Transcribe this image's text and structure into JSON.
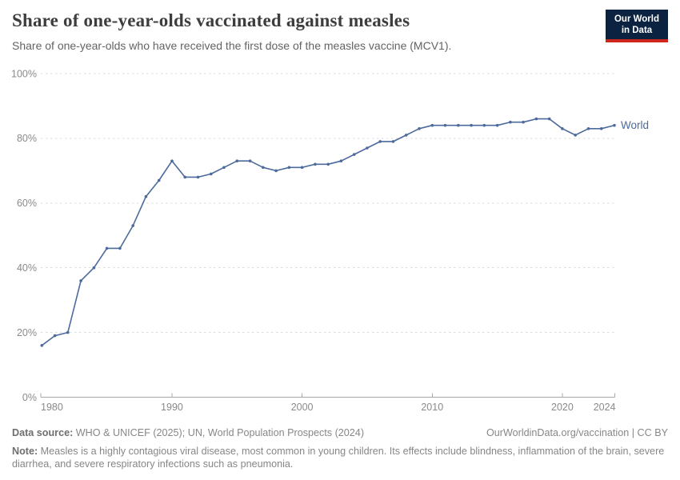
{
  "header": {
    "title": "Share of one-year-olds vaccinated against measles",
    "subtitle": "Share of one-year-olds who have received the first dose of the measles vaccine (MCV1).",
    "logo": {
      "line1": "Our World",
      "line2": "in Data",
      "bg_color": "#0b2341",
      "bar_color": "#ce261b"
    }
  },
  "chart_data": {
    "type": "line",
    "title": "Share of one-year-olds vaccinated against measles",
    "subtitle": "Share of one-year-olds who have received the first dose of the measles vaccine (MCV1).",
    "xlabel": "",
    "ylabel": "",
    "grid": "horizontal-dashed",
    "legend_position": "end-of-line-label",
    "xlim": [
      1980,
      2024
    ],
    "ylim": [
      0,
      100
    ],
    "x_ticks": [
      1980,
      1990,
      2000,
      2010,
      2020,
      2024
    ],
    "y_ticks": [
      0,
      20,
      40,
      60,
      80,
      100
    ],
    "y_tick_suffix": "%",
    "series": [
      {
        "name": "World",
        "color": "#4C6A9C",
        "x": [
          1980,
          1981,
          1982,
          1983,
          1984,
          1985,
          1986,
          1987,
          1988,
          1989,
          1990,
          1991,
          1992,
          1993,
          1994,
          1995,
          1996,
          1997,
          1998,
          1999,
          2000,
          2001,
          2002,
          2003,
          2004,
          2005,
          2006,
          2007,
          2008,
          2009,
          2010,
          2011,
          2012,
          2013,
          2014,
          2015,
          2016,
          2017,
          2018,
          2019,
          2020,
          2021,
          2022,
          2023,
          2024
        ],
        "values": [
          16,
          19,
          20,
          36,
          40,
          46,
          46,
          53,
          62,
          67,
          73,
          68,
          68,
          69,
          71,
          73,
          73,
          71,
          70,
          71,
          71,
          72,
          72,
          73,
          75,
          77,
          79,
          79,
          81,
          83,
          84,
          84,
          84,
          84,
          84,
          84,
          85,
          85,
          86,
          86,
          83,
          81,
          83,
          83,
          84
        ]
      }
    ]
  },
  "footer": {
    "datasource_label": "Data source:",
    "datasource_text": " WHO & UNICEF (2025); UN, World Population Prospects (2024)",
    "license": "OurWorldinData.org/vaccination | CC BY",
    "note_label": "Note:",
    "note_text": " Measles is a highly contagious viral disease, most common in young children. Its effects include blindness, inflammation of the brain, severe diarrhea, and severe respiratory infections such as pneumonia."
  },
  "colors": {
    "line": "#4C6A9C",
    "gridline": "#dcdcdc",
    "axis": "#a8a8a8",
    "tick_label": "#8a8a8a"
  }
}
